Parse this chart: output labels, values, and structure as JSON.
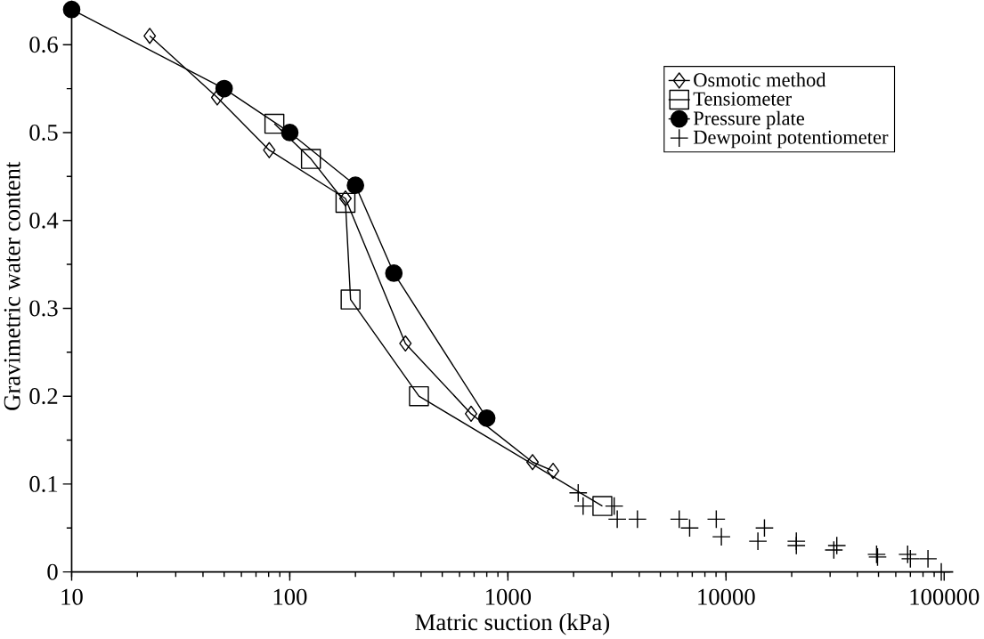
{
  "chart_data": {
    "type": "line",
    "xlabel": "Matric suction (kPa)",
    "ylabel": "Gravimetric water content",
    "log": "x",
    "xlim": [
      10,
      110000
    ],
    "ylim": [
      0,
      0.65
    ],
    "xticks": [
      10,
      100,
      1000,
      10000,
      100000
    ],
    "yticks": [
      0,
      0.1,
      0.2,
      0.3,
      0.4,
      0.5,
      0.6
    ],
    "grid": false,
    "legend": "top right",
    "line_style": "solid",
    "series": [
      {
        "name": "Osmotic method",
        "marker": "diamond",
        "color": "#000000",
        "x": [
          22.8,
          46.5,
          80.5,
          180,
          339,
          678,
          1297,
          1611
        ],
        "values": [
          0.61,
          0.54,
          0.48,
          0.425,
          0.26,
          0.18,
          0.125,
          0.115
        ]
      },
      {
        "name": "Tensiometer",
        "marker": "square",
        "color": "#000000",
        "x": [
          85,
          125,
          180,
          190,
          391,
          2711
        ],
        "values": [
          0.51,
          0.47,
          0.42,
          0.31,
          0.2,
          0.075
        ]
      },
      {
        "name": "Pressure plate",
        "marker": "circle",
        "color": "#000000",
        "x": [
          10,
          50,
          100,
          200,
          300,
          800
        ],
        "values": [
          0.64,
          0.55,
          0.5,
          0.44,
          0.34,
          0.175
        ]
      },
      {
        "name": "Dewpoint potentiometer",
        "type": "scatter",
        "marker": "cross",
        "color": "#000000",
        "x": [
          2100,
          2212,
          3070,
          3171,
          3925,
          6100,
          6810,
          9020,
          9520,
          14000,
          15000,
          21000,
          21000,
          31200,
          32200,
          49000,
          49500,
          68000,
          70000,
          84300,
          97000
        ],
        "values": [
          0.09,
          0.075,
          0.075,
          0.06,
          0.06,
          0.06,
          0.05,
          0.06,
          0.04,
          0.035,
          0.05,
          0.035,
          0.03,
          0.025,
          0.03,
          0.02,
          0.017,
          0.02,
          0.015,
          0.015,
          0
        ]
      }
    ]
  }
}
